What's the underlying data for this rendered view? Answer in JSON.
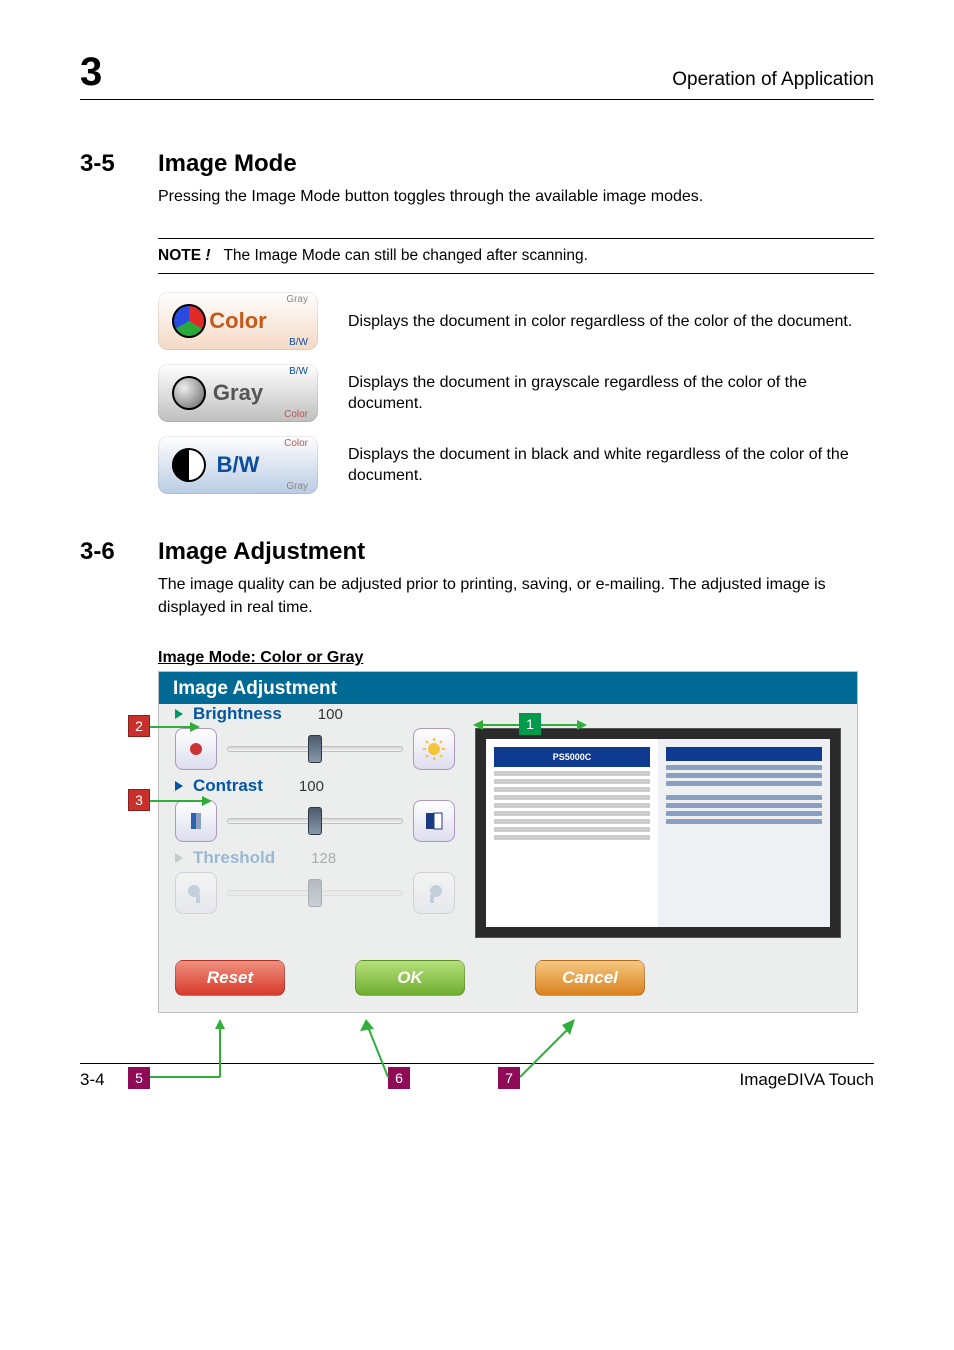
{
  "header": {
    "chapter_number": "3",
    "chapter_title": "Operation of Application"
  },
  "section_image_mode": {
    "num": "3-5",
    "title": "Image Mode",
    "intro": "Pressing the Image Mode button toggles through the available image modes.",
    "note_label": "NOTE",
    "note_slash": " !",
    "note_text": "The Image Mode can still be changed after scanning.",
    "rows": [
      {
        "top": "Gray",
        "main": "Color",
        "bot": "B/W",
        "desc": "Displays the document in color regardless of the color of the document."
      },
      {
        "top": "B/W",
        "main": "Gray",
        "bot": "Color",
        "desc": "Displays the document in grayscale regardless of the color of the document."
      },
      {
        "top": "Color",
        "main": "B/W",
        "bot": "Gray",
        "desc": "Displays the document in black and white regardless of the color of the document."
      }
    ]
  },
  "section_image_adj": {
    "num": "3-6",
    "title": "Image Adjustment",
    "intro": "The image quality can be adjusted prior to printing, saving, or e-mailing. The adjusted image is displayed in real time.",
    "subhead": "Image Mode: Color or Gray"
  },
  "shot": {
    "title": "Image Adjustment",
    "title_bg": "#006a95",
    "brightness": {
      "label": "Brightness",
      "value": "100",
      "color": "#0555a3",
      "triangle_color": "#009966",
      "thumb_pos_pct": 50
    },
    "contrast": {
      "label": "Contrast",
      "value": "100",
      "color": "#0555a3",
      "triangle_color": "#0555a3",
      "thumb_pos_pct": 50
    },
    "threshold": {
      "label": "Threshold",
      "value": "128",
      "color": "#0555a3",
      "triangle_color": "#888888",
      "thumb_pos_pct": 50
    },
    "buttons": {
      "reset": {
        "label": "Reset",
        "bg": "#d63a2b"
      },
      "ok": {
        "label": "OK",
        "bg": "#6fae2f"
      },
      "cancel": {
        "label": "Cancel",
        "bg": "#d9821f"
      }
    },
    "preview_caption": "PS5000C"
  },
  "callouts": {
    "border_green": "#009a4d",
    "bg_green": "#009a4d",
    "border_purple": "#8f0a57",
    "bg_purple": "#8f0a57",
    "line_green": "#2fae3a",
    "arrow_green": "#2fae3a"
  },
  "footer": {
    "page": "3-4",
    "product": "ImageDIVA Touch"
  }
}
